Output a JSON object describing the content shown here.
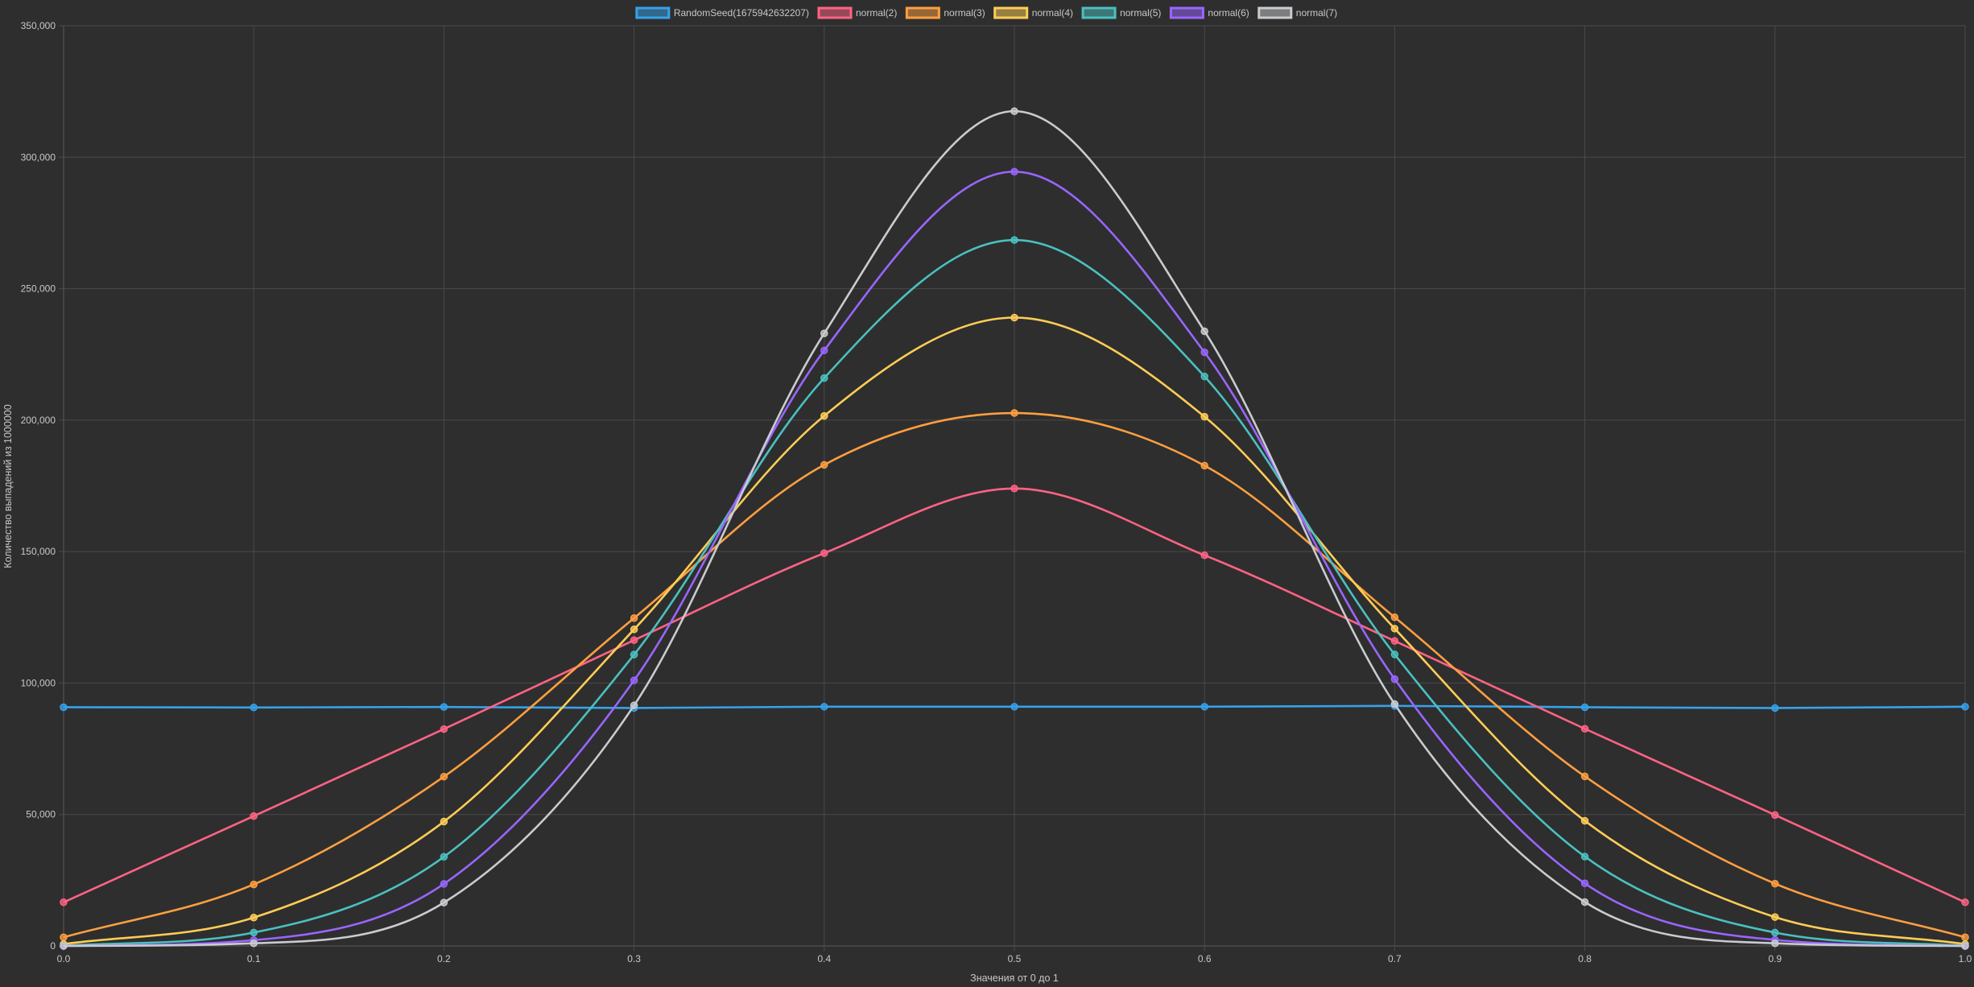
{
  "chart_data": {
    "type": "line",
    "xlabel": "Значения от 0 до 1",
    "ylabel": "Количество выпадений из 1000000",
    "x": [
      0.0,
      0.1,
      0.2,
      0.3,
      0.4,
      0.5,
      0.6,
      0.7,
      0.8,
      0.9,
      1.0
    ],
    "x_tick_labels": [
      "0.0",
      "0.1",
      "0.2",
      "0.3",
      "0.4",
      "0.5",
      "0.6",
      "0.7",
      "0.8",
      "0.9",
      "1.0"
    ],
    "ylim": [
      0,
      350000
    ],
    "y_ticks": [
      0,
      50000,
      100000,
      150000,
      200000,
      250000,
      300000,
      350000
    ],
    "y_tick_labels": [
      "0",
      "50,000",
      "100,000",
      "150,000",
      "200,000",
      "250,000",
      "300,000",
      "350,000"
    ],
    "grid": true,
    "legend_position": "top-center",
    "series": [
      {
        "name": "RandomSeed(1675942632207)",
        "color": "#36a2eb",
        "values": [
          90800,
          90700,
          90900,
          90500,
          91000,
          91000,
          91000,
          91300,
          90800,
          90500,
          91000
        ]
      },
      {
        "name": "normal(2)",
        "color": "#ff6384",
        "values": [
          16600,
          49400,
          82500,
          116300,
          149400,
          174000,
          148600,
          116000,
          82600,
          49800,
          16600
        ]
      },
      {
        "name": "normal(3)",
        "color": "#ff9f40",
        "values": [
          3300,
          23400,
          64400,
          124700,
          183000,
          202700,
          182700,
          125000,
          64500,
          23700,
          3300
        ]
      },
      {
        "name": "normal(4)",
        "color": "#ffcd56",
        "values": [
          700,
          10800,
          47300,
          120400,
          201600,
          239000,
          201300,
          120700,
          47600,
          11000,
          700
        ]
      },
      {
        "name": "normal(5)",
        "color": "#4bc0c0",
        "values": [
          100,
          5100,
          33900,
          110800,
          216000,
          268500,
          216600,
          110900,
          34000,
          5100,
          100
        ]
      },
      {
        "name": "normal(6)",
        "color": "#9966ff",
        "values": [
          0,
          2200,
          23600,
          101000,
          226500,
          294500,
          225800,
          101500,
          23800,
          2300,
          0
        ]
      },
      {
        "name": "normal(7)",
        "color": "#c9cbcf",
        "values": [
          0,
          1000,
          16500,
          91500,
          233000,
          317500,
          233800,
          92000,
          16700,
          1000,
          0
        ]
      }
    ]
  }
}
